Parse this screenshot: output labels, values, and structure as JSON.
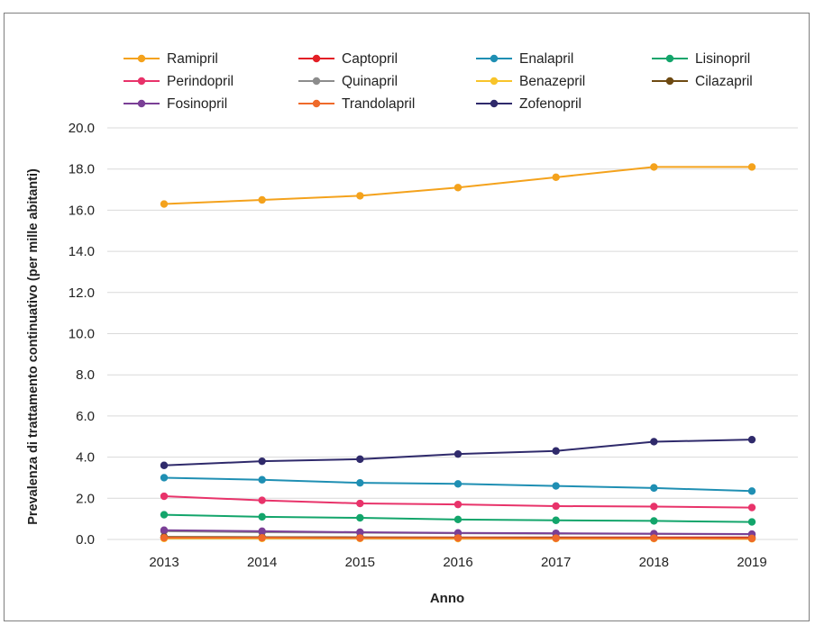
{
  "chart_data": {
    "type": "line",
    "title": "",
    "xlabel": "Anno",
    "ylabel": "Prevalenza di trattamento continuativo (per mille abitanti)",
    "categories": [
      "2013",
      "2014",
      "2015",
      "2016",
      "2017",
      "2018",
      "2019"
    ],
    "ylim": [
      0,
      20
    ],
    "yticks": [
      "0.0",
      "2.0",
      "4.0",
      "6.0",
      "8.0",
      "10.0",
      "12.0",
      "14.0",
      "16.0",
      "18.0",
      "20.0"
    ],
    "grid": true,
    "legend_position": "top",
    "series": [
      {
        "name": "Ramipril",
        "color": "#f4a21c",
        "values": [
          16.3,
          16.5,
          16.7,
          17.1,
          17.6,
          18.1,
          18.1
        ]
      },
      {
        "name": "Captopril",
        "color": "#e31f26",
        "values": [
          0.1,
          0.1,
          0.1,
          0.1,
          0.1,
          0.1,
          0.1
        ]
      },
      {
        "name": "Enalapril",
        "color": "#1f8fb3",
        "values": [
          3.0,
          2.9,
          2.75,
          2.7,
          2.6,
          2.5,
          2.35
        ]
      },
      {
        "name": "Lisinopril",
        "color": "#13a56b",
        "values": [
          1.2,
          1.1,
          1.05,
          0.97,
          0.93,
          0.9,
          0.85
        ]
      },
      {
        "name": "Perindopril",
        "color": "#e8336a",
        "values": [
          2.1,
          1.9,
          1.75,
          1.7,
          1.62,
          1.6,
          1.55
        ]
      },
      {
        "name": "Quinapril",
        "color": "#8c8c8c",
        "values": [
          0.4,
          0.35,
          0.33,
          0.3,
          0.28,
          0.27,
          0.25
        ]
      },
      {
        "name": "Benazepril",
        "color": "#f8c42a",
        "values": [
          0.05,
          0.05,
          0.05,
          0.04,
          0.04,
          0.04,
          0.03
        ]
      },
      {
        "name": "Cilazapril",
        "color": "#6e4a12",
        "values": [
          0.12,
          0.11,
          0.1,
          0.09,
          0.08,
          0.07,
          0.06
        ]
      },
      {
        "name": "Fosinopril",
        "color": "#7a3f96",
        "values": [
          0.45,
          0.4,
          0.35,
          0.32,
          0.3,
          0.28,
          0.26
        ]
      },
      {
        "name": "Trandolapril",
        "color": "#ef6a2a",
        "values": [
          0.08,
          0.08,
          0.07,
          0.07,
          0.06,
          0.06,
          0.05
        ]
      },
      {
        "name": "Zofenopril",
        "color": "#2f2a6b",
        "values": [
          3.6,
          3.8,
          3.9,
          4.15,
          4.3,
          4.75,
          4.85
        ]
      }
    ]
  }
}
